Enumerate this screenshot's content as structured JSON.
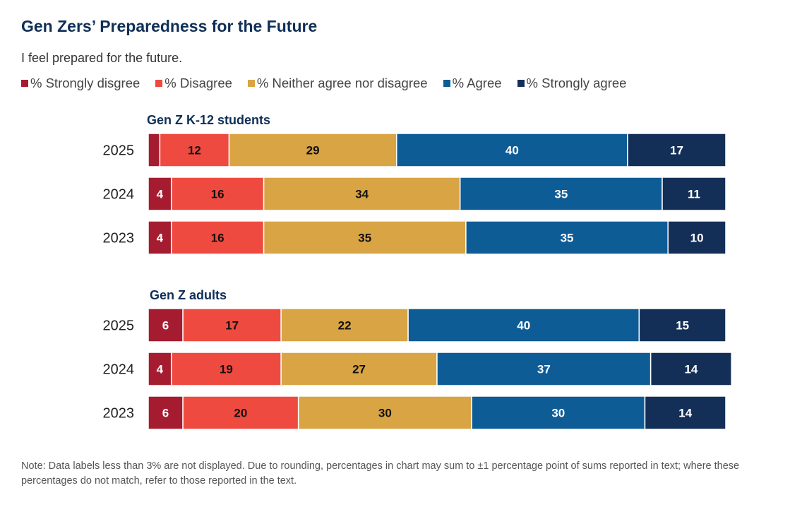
{
  "title": "Gen Zers’ Preparedness for the Future",
  "subtitle": "I feel prepared for the future.",
  "note": "Note: Data labels less than 3% are not displayed. Due to rounding, percentages in chart may sum to ±1 percentage point of sums reported in text; where these percentages do not match, refer to those reported in the text.",
  "chart_data": {
    "type": "bar",
    "stacked": true,
    "orientation": "horizontal",
    "title": "Gen Zers’ Preparedness for the Future",
    "legend_position": "top-left",
    "series": [
      {
        "name": "% Strongly disgree",
        "color": "#a51c30",
        "label_color": "#ffffff"
      },
      {
        "name": "% Disagree",
        "color": "#ef4a3f",
        "label_color": "#111111"
      },
      {
        "name": "% Neither agree nor disagree",
        "color": "#d9a444",
        "label_color": "#111111"
      },
      {
        "name": "% Agree",
        "color": "#0e5c96",
        "label_color": "#ffffff"
      },
      {
        "name": "% Strongly agree",
        "color": "#142f57",
        "label_color": "#ffffff"
      }
    ],
    "groups": [
      {
        "name": "Gen Z K-12 students",
        "rows": [
          {
            "year": "2025",
            "values": [
              2,
              12,
              29,
              40,
              17
            ]
          },
          {
            "year": "2024",
            "values": [
              4,
              16,
              34,
              35,
              11
            ]
          },
          {
            "year": "2023",
            "values": [
              4,
              16,
              35,
              35,
              10
            ]
          }
        ]
      },
      {
        "name": "Gen Z adults",
        "rows": [
          {
            "year": "2025",
            "values": [
              6,
              17,
              22,
              40,
              15
            ]
          },
          {
            "year": "2024",
            "values": [
              4,
              19,
              27,
              37,
              14
            ]
          },
          {
            "year": "2023",
            "values": [
              6,
              20,
              30,
              30,
              14
            ]
          }
        ]
      }
    ],
    "label_threshold": 3
  }
}
